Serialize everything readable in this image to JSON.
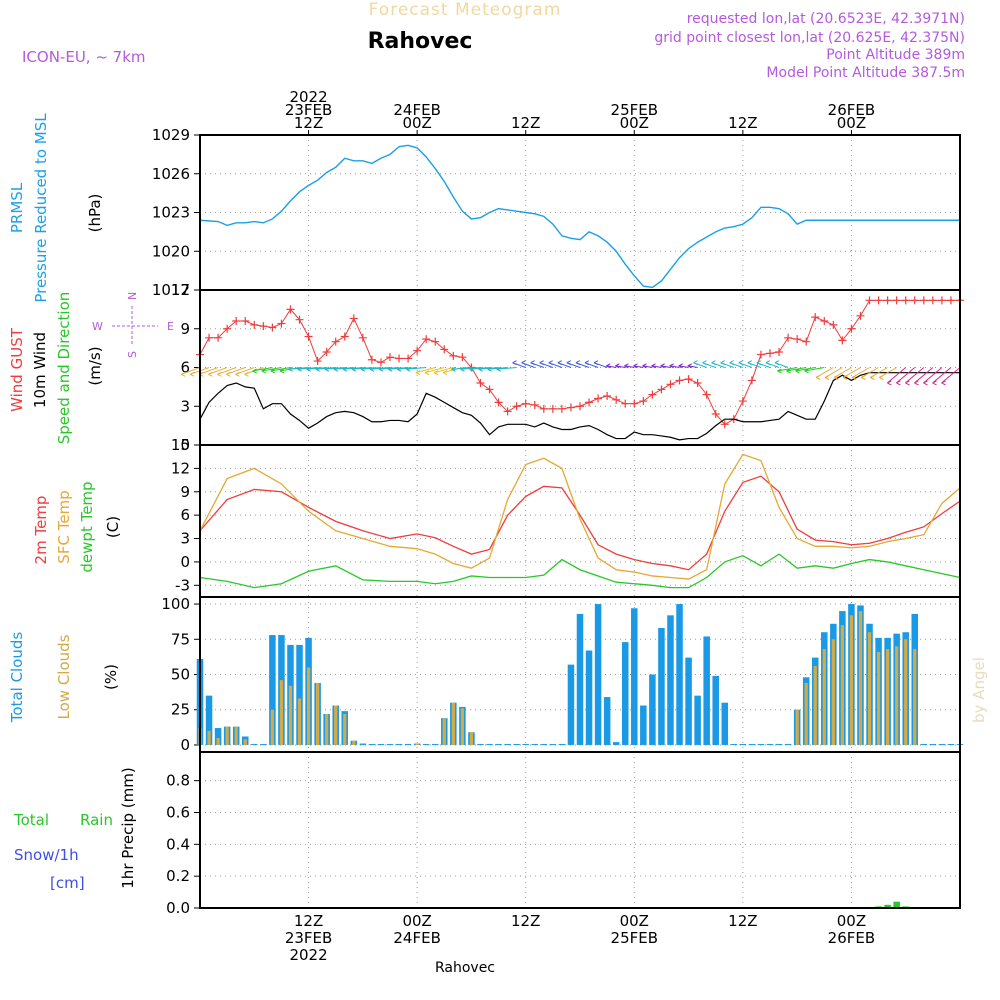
{
  "header": {
    "product_title": "Forecast Meteogram",
    "location": "Rahovec",
    "model": "ICON-EU, ~ 7km",
    "requested": "requested lon,lat (20.6523E, 42.3971N)",
    "grid_point": "grid point closest lon,lat (20.625E, 42.375N)",
    "point_alt": "Point Altitude 389m",
    "model_alt": "Model Point Altitude 387.5m",
    "footer_location": "Rahovec",
    "watermark": "by Angel"
  },
  "time_axis": {
    "top_ticks": [
      {
        "hour": 12,
        "lines": [
          "2022",
          "23FEB",
          "12Z"
        ]
      },
      {
        "hour": 24,
        "lines": [
          "24FEB",
          "00Z"
        ]
      },
      {
        "hour": 36,
        "lines": [
          "12Z"
        ]
      },
      {
        "hour": 48,
        "lines": [
          "25FEB",
          "00Z"
        ]
      },
      {
        "hour": 60,
        "lines": [
          "12Z"
        ]
      },
      {
        "hour": 72,
        "lines": [
          "26FEB",
          "00Z"
        ]
      }
    ],
    "bottom_ticks": [
      {
        "hour": 12,
        "lines": [
          "12Z",
          "23FEB",
          "2022"
        ]
      },
      {
        "hour": 24,
        "lines": [
          "00Z",
          "24FEB"
        ]
      },
      {
        "hour": 36,
        "lines": [
          "12Z"
        ]
      },
      {
        "hour": 48,
        "lines": [
          "00Z",
          "25FEB"
        ]
      },
      {
        "hour": 60,
        "lines": [
          "12Z"
        ]
      },
      {
        "hour": 72,
        "lines": [
          "00Z",
          "26FEB"
        ]
      }
    ]
  },
  "panel_labels": {
    "pressure": {
      "l1": "PRMSL",
      "l2": "Pressure Reduced to MSL",
      "unit": "(hPa)"
    },
    "wind": {
      "l1": "Wind GUST",
      "l2": "10m Wind",
      "l3": "Speed and Direction",
      "unit": "(m/s)",
      "compass": [
        "N",
        "W",
        "E",
        "S"
      ]
    },
    "temp": {
      "l1": "2m Temp",
      "l2": "SFC Temp",
      "l3": "dewpt Temp",
      "unit": "(C)"
    },
    "clouds": {
      "l1": "Total Clouds",
      "l2": "Low Clouds",
      "unit": "(%)"
    },
    "precip": {
      "l1": "Total",
      "l1b": "Rain",
      "l2": "Snow/1h",
      "l3": "[cm]",
      "unit": "1hr Precip (mm)"
    }
  },
  "colors": {
    "pressure": "#1aa0e6",
    "gust": "#f03c3c",
    "wind": "#000000",
    "temp2m": "#f03c3c",
    "sfc": "#e6a832",
    "dewpt": "#28c828",
    "total_cloud": "#1a9ae6",
    "low_cloud": "#d2aa46",
    "rain": "#28c828",
    "title": "#f0d8a0",
    "meta": "#b45adc"
  },
  "chart_data": [
    {
      "type": "line",
      "name": "pressure",
      "xlabel": "",
      "ylabel": "(hPa)",
      "ylim": [
        1017,
        1029
      ],
      "yticks": [
        1017,
        1020,
        1023,
        1026,
        1029
      ],
      "x": [
        0,
        2,
        3,
        4,
        5,
        6,
        7,
        8,
        9,
        10,
        11,
        12,
        13,
        14,
        15,
        16,
        17,
        18,
        19,
        20,
        21,
        22,
        23,
        24,
        25,
        26,
        27,
        28,
        29,
        30,
        31,
        32,
        33,
        34,
        35,
        36,
        37,
        38,
        39,
        40,
        41,
        42,
        43,
        44,
        45,
        46,
        47,
        48,
        49,
        50,
        51,
        52,
        53,
        54,
        55,
        56,
        57,
        58,
        59,
        60,
        61,
        62,
        63,
        64,
        65,
        66,
        67,
        68,
        69,
        70,
        71,
        72,
        73,
        74,
        75,
        76,
        77,
        78,
        79,
        80,
        81,
        82,
        83,
        84
      ],
      "series": [
        {
          "values": [
            1022.4,
            1022.3,
            1022.0,
            1022.2,
            1022.2,
            1022.3,
            1022.2,
            1022.5,
            1023.1,
            1023.9,
            1024.6,
            1025.1,
            1025.5,
            1026.1,
            1026.5,
            1027.2,
            1027.0,
            1027.0,
            1026.8,
            1027.2,
            1027.5,
            1028.1,
            1028.2,
            1028.0,
            1027.3,
            1026.4,
            1025.4,
            1024.2,
            1023.1,
            1022.5,
            1022.6,
            1023.0,
            1023.3,
            1023.2,
            1023.1,
            1023.0,
            1022.9,
            1022.7,
            1022.1,
            1021.2,
            1021.0,
            1020.9,
            1021.5,
            1021.2,
            1020.7,
            1020.0,
            1019.0,
            1018.1,
            1017.3,
            1017.2,
            1017.7,
            1018.6,
            1019.5,
            1020.2,
            1020.7,
            1021.1,
            1021.5,
            1021.8,
            1021.9,
            1022.1,
            1022.6,
            1023.4,
            1023.4,
            1023.3,
            1022.9,
            1022.1,
            1022.4,
            1022.4,
            1022.4,
            1022.4,
            1022.4,
            1022.4,
            1022.4,
            1022.4,
            1022.4,
            1022.4,
            1022.4,
            1022.4,
            1022.4,
            1022.4,
            1022.4,
            1022.4,
            1022.4,
            1022.4
          ]
        }
      ]
    },
    {
      "type": "line",
      "name": "wind",
      "ylim": [
        0,
        12
      ],
      "yticks": [
        0,
        3,
        6,
        9,
        12
      ],
      "x": [
        0,
        1,
        2,
        3,
        4,
        5,
        6,
        7,
        8,
        9,
        10,
        11,
        12,
        13,
        14,
        15,
        16,
        17,
        18,
        19,
        20,
        21,
        22,
        23,
        24,
        25,
        26,
        27,
        28,
        29,
        30,
        31,
        32,
        33,
        34,
        35,
        36,
        37,
        38,
        39,
        40,
        41,
        42,
        43,
        44,
        45,
        46,
        47,
        48,
        49,
        50,
        51,
        52,
        53,
        54,
        55,
        56,
        57,
        58,
        59,
        60,
        61,
        62,
        63,
        64,
        65,
        66,
        67,
        68,
        69,
        70,
        71,
        72,
        73,
        74,
        75,
        76,
        77,
        78,
        79,
        80,
        81,
        82,
        83,
        84
      ],
      "series": [
        {
          "values": [
            7.0,
            8.3,
            8.3,
            9.0,
            9.6,
            9.6,
            9.3,
            9.2,
            9.1,
            9.4,
            10.5,
            9.7,
            8.4,
            6.5,
            7.2,
            8.0,
            8.4,
            9.8,
            8.3,
            6.6,
            6.4,
            6.8,
            6.7,
            6.7,
            7.3,
            8.2,
            8.0,
            7.4,
            6.9,
            6.8,
            6.0,
            4.8,
            4.3,
            3.3,
            2.6,
            3.0,
            3.2,
            3.1,
            2.8,
            2.8,
            2.8,
            2.9,
            3.0,
            3.3,
            3.6,
            3.8,
            3.5,
            3.2,
            3.2,
            3.4,
            3.9,
            4.3,
            4.7,
            5.0,
            5.1,
            4.8,
            3.9,
            2.4,
            1.6,
            2.0,
            3.4,
            5.0,
            7.0,
            7.1,
            7.2,
            8.3,
            8.2,
            8.0,
            9.9,
            9.6,
            9.3,
            8.1,
            9.0,
            10.0,
            11.2,
            11.2,
            11.2,
            11.2,
            11.2,
            11.2,
            11.2,
            11.2,
            11.2,
            11.2,
            11.2
          ]
        },
        {
          "values": [
            2.0,
            3.3,
            4.0,
            4.6,
            4.8,
            4.5,
            4.4,
            2.8,
            3.2,
            3.2,
            2.4,
            1.9,
            1.3,
            1.7,
            2.2,
            2.5,
            2.6,
            2.5,
            2.2,
            1.8,
            1.8,
            1.9,
            1.9,
            1.8,
            2.4,
            4.0,
            3.7,
            3.3,
            2.9,
            2.5,
            2.3,
            1.7,
            0.8,
            1.4,
            1.6,
            1.6,
            1.6,
            1.4,
            1.7,
            1.4,
            1.2,
            1.2,
            1.4,
            1.5,
            1.2,
            0.8,
            0.5,
            0.5,
            1.0,
            0.8,
            0.8,
            0.7,
            0.6,
            0.4,
            0.5,
            0.5,
            0.9,
            1.5,
            2.0,
            2.0,
            1.8,
            1.8,
            1.8,
            1.9,
            2.0,
            2.6,
            2.3,
            2.0,
            2.0,
            3.4,
            5.0,
            5.4,
            5.0,
            5.4,
            5.6,
            5.6,
            5.6,
            5.6,
            5.6,
            5.6,
            5.6,
            5.6,
            5.6,
            5.6,
            5.6
          ]
        }
      ]
    },
    {
      "type": "line",
      "name": "temperature",
      "ylim": [
        -4.5,
        15
      ],
      "yticks": [
        -3,
        0,
        3,
        6,
        9,
        12,
        15
      ],
      "x": [
        0,
        3,
        6,
        9,
        12,
        15,
        18,
        21,
        24,
        26,
        28,
        30,
        32,
        34,
        36,
        38,
        40,
        42,
        44,
        46,
        48,
        50,
        52,
        54,
        56,
        58,
        60,
        62,
        64,
        66,
        68,
        70,
        72,
        74,
        76,
        78,
        80,
        82,
        84
      ],
      "series": [
        {
          "values": [
            4.0,
            8.0,
            9.3,
            9.0,
            7.0,
            5.2,
            4.0,
            3.0,
            3.6,
            3.1,
            2.0,
            1.0,
            1.6,
            6.0,
            8.4,
            9.7,
            9.5,
            6.0,
            2.2,
            1.0,
            0.3,
            -0.2,
            -0.5,
            -1.0,
            1.0,
            6.5,
            10.2,
            11.0,
            9.0,
            4.2,
            2.8,
            2.6,
            2.2,
            2.4,
            3.0,
            3.8,
            4.5,
            6.2,
            7.8
          ]
        },
        {
          "values": [
            4.0,
            10.7,
            12.0,
            10.0,
            6.5,
            4.0,
            3.0,
            2.0,
            1.7,
            1.0,
            -0.2,
            -0.8,
            0.5,
            8.0,
            12.5,
            13.3,
            12.0,
            5.5,
            0.5,
            -1.0,
            -1.3,
            -1.8,
            -2.0,
            -2.2,
            -1.0,
            10.0,
            13.8,
            13.0,
            7.0,
            3.0,
            2.0,
            2.0,
            1.8,
            2.0,
            2.6,
            3.0,
            3.5,
            7.5,
            9.5
          ]
        },
        {
          "values": [
            -2.0,
            -2.5,
            -3.3,
            -2.8,
            -1.2,
            -0.5,
            -2.3,
            -2.5,
            -2.5,
            -2.8,
            -2.5,
            -1.8,
            -2.0,
            -2.0,
            -2.0,
            -1.7,
            0.3,
            -1.0,
            -1.8,
            -2.6,
            -2.8,
            -3.0,
            -3.3,
            -3.3,
            -2.0,
            0.0,
            0.8,
            -0.5,
            1.0,
            -0.8,
            -0.5,
            -0.8,
            -0.2,
            0.3,
            0.0,
            -0.5,
            -1.0,
            -1.5,
            -2.0
          ]
        }
      ]
    },
    {
      "type": "bar",
      "name": "clouds",
      "ylim": [
        -5,
        105
      ],
      "yticks": [
        0,
        25,
        50,
        75,
        100
      ],
      "x": [
        0,
        1,
        2,
        3,
        4,
        5,
        6,
        7,
        8,
        9,
        10,
        11,
        12,
        13,
        14,
        15,
        16,
        17,
        18,
        19,
        20,
        21,
        22,
        23,
        24,
        25,
        26,
        27,
        28,
        29,
        30,
        31,
        32,
        33,
        34,
        35,
        36,
        37,
        38,
        39,
        40,
        41,
        42,
        43,
        44,
        45,
        46,
        47,
        48,
        49,
        50,
        51,
        52,
        53,
        54,
        55,
        56,
        57,
        58,
        59,
        60,
        61,
        62,
        63,
        64,
        65,
        66,
        67,
        68,
        69,
        70,
        71,
        72,
        73,
        74,
        75,
        76,
        77,
        78,
        79,
        80,
        81,
        82,
        83,
        84
      ],
      "series": [
        {
          "values": [
            61,
            35,
            12,
            13,
            13,
            6,
            0,
            0,
            78,
            78,
            71,
            71,
            76,
            44,
            22,
            28,
            24,
            3,
            1,
            0,
            0,
            0,
            0,
            0,
            1,
            0,
            0,
            19,
            30,
            27,
            9,
            0,
            0,
            0,
            0,
            0,
            0,
            0,
            0,
            0,
            0,
            57,
            93,
            67,
            100,
            34,
            2,
            73,
            97,
            28,
            50,
            83,
            92,
            100,
            62,
            35,
            77,
            49,
            30,
            0,
            0,
            0,
            0,
            0,
            0,
            0,
            25,
            48,
            62,
            80,
            86,
            95,
            100,
            99,
            86,
            76,
            76,
            79,
            80,
            93,
            0,
            0,
            0,
            0,
            0
          ]
        },
        {
          "values": [
            12,
            10,
            5,
            13,
            13,
            4,
            0,
            0,
            25,
            46,
            42,
            33,
            55,
            44,
            22,
            28,
            22,
            3,
            0,
            0,
            0,
            0,
            0,
            0,
            1,
            0,
            0,
            19,
            30,
            26,
            9,
            0,
            0,
            0,
            0,
            0,
            0,
            0,
            0,
            0,
            0,
            0,
            0,
            0,
            0,
            0,
            0,
            0,
            0,
            0,
            0,
            0,
            0,
            0,
            0,
            0,
            0,
            0,
            0,
            0,
            0,
            0,
            0,
            0,
            0,
            0,
            25,
            44,
            56,
            68,
            75,
            85,
            92,
            95,
            80,
            66,
            68,
            70,
            75,
            68,
            0,
            0,
            0,
            0,
            0
          ]
        }
      ]
    },
    {
      "type": "bar",
      "name": "precip",
      "ylim": [
        0,
        0.98
      ],
      "yticks": [
        0,
        0.2,
        0.4,
        0.6,
        0.8
      ],
      "x": [
        75,
        76,
        77,
        78
      ],
      "series": [
        {
          "values": [
            0.01,
            0.02,
            0.04,
            0.01
          ]
        }
      ]
    }
  ]
}
